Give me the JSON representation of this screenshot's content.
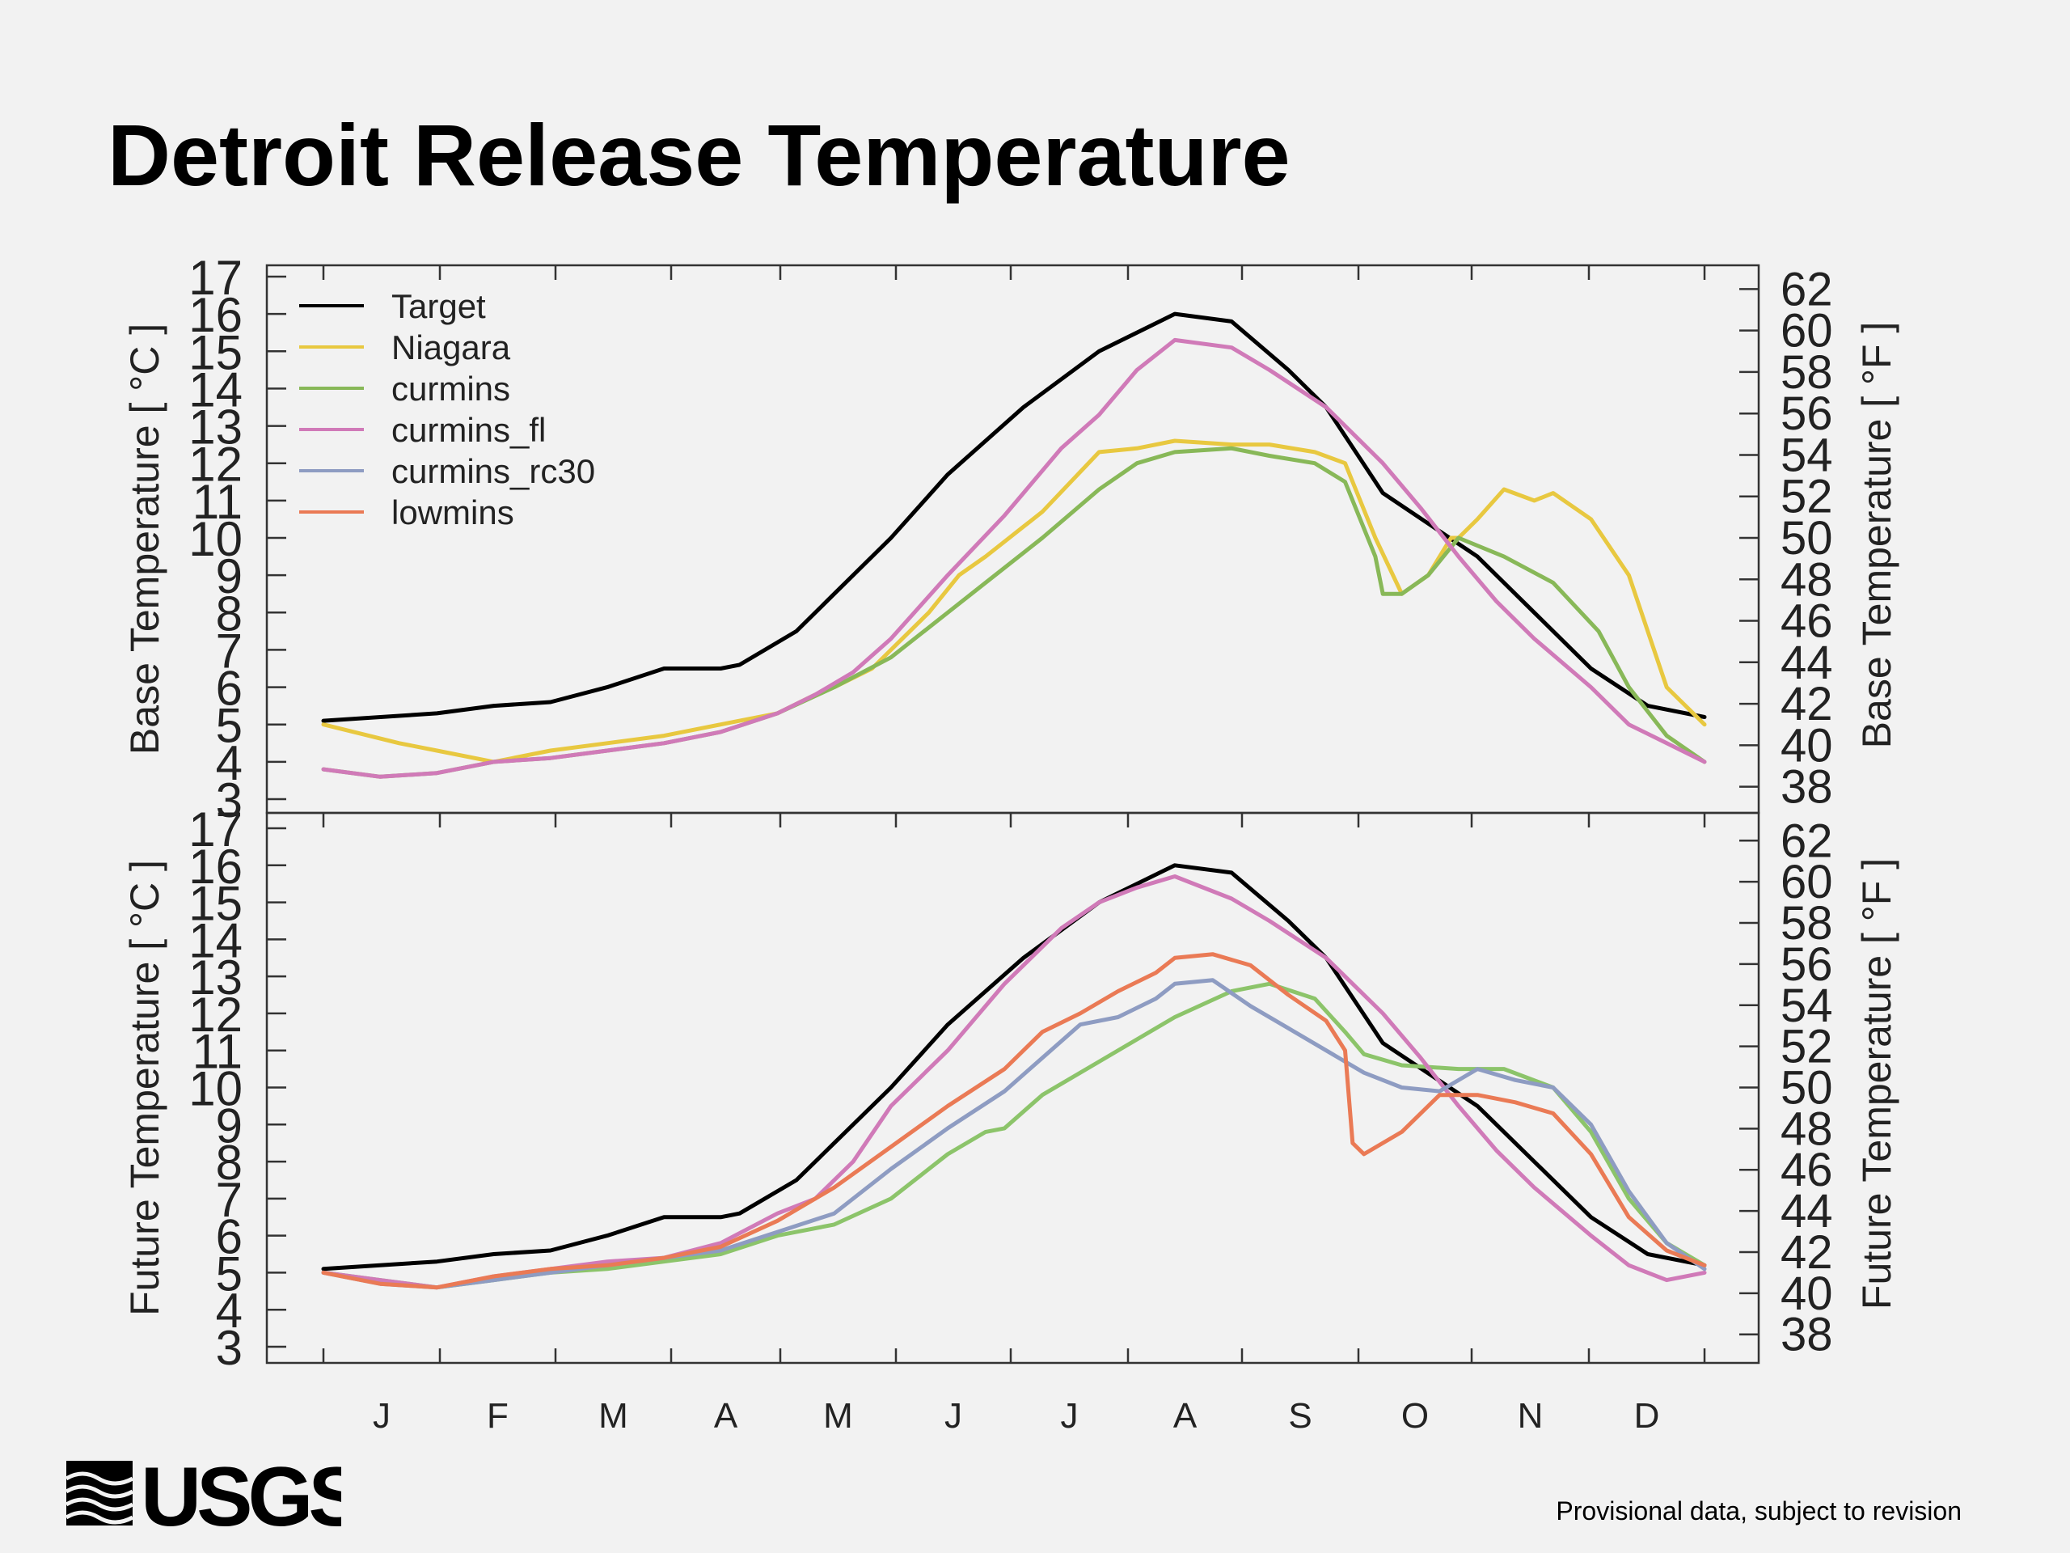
{
  "title": "Detroit Release Temperature",
  "footnote": "Provisional data, subject to revision",
  "logo_text": "USGS",
  "chart_data": [
    {
      "type": "line",
      "panel": "top",
      "ylabel": "Base Temperature [ °C ]",
      "ylabel_right": "Base Temperature [ °F ]",
      "ylim": [
        3,
        17
      ],
      "yticks": [
        3,
        4,
        5,
        6,
        7,
        8,
        9,
        10,
        11,
        12,
        13,
        14,
        15,
        16,
        17
      ],
      "yticks_right": [
        38,
        40,
        42,
        44,
        46,
        48,
        50,
        52,
        54,
        56,
        58,
        60,
        62
      ],
      "x_categories": [
        "J",
        "F",
        "M",
        "A",
        "M",
        "J",
        "J",
        "A",
        "S",
        "O",
        "N",
        "D"
      ],
      "xlim": [
        0,
        365
      ],
      "grid": false,
      "legend_position": "top-left",
      "legend": [
        "Target",
        "Niagara",
        "curmins",
        "curmins_fl",
        "curmins_rc30",
        "lowmins"
      ],
      "series": [
        {
          "name": "Target",
          "color": "#000000",
          "x": [
            0,
            30,
            45,
            60,
            75,
            90,
            105,
            110,
            125,
            135,
            150,
            165,
            185,
            205,
            225,
            240,
            255,
            265,
            280,
            305,
            320,
            335,
            350,
            365
          ],
          "y": [
            5.1,
            5.3,
            5.5,
            5.6,
            6.0,
            6.5,
            6.5,
            6.6,
            7.5,
            8.5,
            10.0,
            11.7,
            13.5,
            15.0,
            16.0,
            15.8,
            14.5,
            13.5,
            11.2,
            9.5,
            8.0,
            6.5,
            5.5,
            5.2
          ]
        },
        {
          "name": "Niagara",
          "color": "#e8c840",
          "x": [
            0,
            20,
            30,
            45,
            60,
            75,
            90,
            105,
            120,
            130,
            135,
            145,
            150,
            160,
            168,
            175,
            190,
            205,
            215,
            225,
            240,
            250,
            262,
            270,
            278,
            285,
            292,
            298,
            300,
            305,
            312,
            320,
            325,
            335,
            345,
            350,
            355,
            365
          ],
          "y": [
            5.0,
            4.5,
            4.3,
            4.0,
            4.3,
            4.5,
            4.7,
            5.0,
            5.3,
            5.8,
            6.0,
            6.5,
            7.0,
            8.0,
            9.0,
            9.5,
            10.7,
            12.3,
            12.4,
            12.6,
            12.5,
            12.5,
            12.3,
            12.0,
            10.0,
            8.5,
            9.0,
            10.0,
            10.0,
            10.5,
            11.3,
            11.0,
            11.2,
            10.5,
            9.0,
            7.5,
            6.0,
            5.0
          ]
        },
        {
          "name": "curmins",
          "color": "#88b858",
          "x": [
            0,
            15,
            30,
            45,
            60,
            75,
            90,
            105,
            120,
            135,
            150,
            165,
            175,
            190,
            205,
            215,
            225,
            240,
            250,
            262,
            270,
            278,
            280,
            285,
            292,
            300,
            312,
            325,
            337,
            345,
            355,
            365
          ],
          "y": [
            3.8,
            3.6,
            3.7,
            4.0,
            4.1,
            4.3,
            4.5,
            4.8,
            5.3,
            6.0,
            6.8,
            8.0,
            8.8,
            10.0,
            11.3,
            12.0,
            12.3,
            12.4,
            12.2,
            12.0,
            11.5,
            9.5,
            8.5,
            8.5,
            9.0,
            10.0,
            9.5,
            8.8,
            7.5,
            6.0,
            4.7,
            4.0
          ]
        },
        {
          "name": "curmins_fl",
          "color": "#d07ab8",
          "x": [
            0,
            15,
            30,
            45,
            60,
            75,
            90,
            105,
            120,
            130,
            140,
            150,
            165,
            180,
            195,
            205,
            215,
            225,
            240,
            250,
            265,
            280,
            290,
            300,
            310,
            320,
            335,
            345,
            355,
            365
          ],
          "y": [
            3.8,
            3.6,
            3.7,
            4.0,
            4.1,
            4.3,
            4.5,
            4.8,
            5.3,
            5.8,
            6.4,
            7.3,
            9.0,
            10.6,
            12.4,
            13.3,
            14.5,
            15.3,
            15.1,
            14.5,
            13.5,
            12.0,
            10.8,
            9.5,
            8.3,
            7.3,
            6.0,
            5.0,
            4.5,
            4.0
          ]
        }
      ]
    },
    {
      "type": "line",
      "panel": "bottom",
      "ylabel": "Future Temperature [ °C ]",
      "ylabel_right": "Future Temperature [ °F ]",
      "ylim": [
        3,
        17
      ],
      "yticks": [
        3,
        4,
        5,
        6,
        7,
        8,
        9,
        10,
        11,
        12,
        13,
        14,
        15,
        16,
        17
      ],
      "yticks_right": [
        38,
        40,
        42,
        44,
        46,
        48,
        50,
        52,
        54,
        56,
        58,
        60,
        62
      ],
      "x_categories": [
        "J",
        "F",
        "M",
        "A",
        "M",
        "J",
        "J",
        "A",
        "S",
        "O",
        "N",
        "D"
      ],
      "xlim": [
        0,
        365
      ],
      "grid": false,
      "series": [
        {
          "name": "Target",
          "color": "#000000",
          "x": [
            0,
            30,
            45,
            60,
            75,
            90,
            105,
            110,
            125,
            135,
            150,
            165,
            185,
            205,
            225,
            240,
            255,
            265,
            280,
            305,
            320,
            335,
            350,
            365
          ],
          "y": [
            5.1,
            5.3,
            5.5,
            5.6,
            6.0,
            6.5,
            6.5,
            6.6,
            7.5,
            8.5,
            10.0,
            11.7,
            13.5,
            15.0,
            16.0,
            15.8,
            14.5,
            13.5,
            11.2,
            9.5,
            8.0,
            6.5,
            5.5,
            5.2
          ]
        },
        {
          "name": "curmins",
          "color": "#8cc46a",
          "x": [
            0,
            15,
            30,
            45,
            60,
            75,
            90,
            105,
            120,
            135,
            150,
            165,
            175,
            180,
            190,
            205,
            215,
            225,
            240,
            250,
            262,
            270,
            275,
            285,
            300,
            312,
            325,
            335,
            345,
            355,
            365
          ],
          "y": [
            5.0,
            4.8,
            4.6,
            4.8,
            5.0,
            5.1,
            5.3,
            5.5,
            6.0,
            6.3,
            7.0,
            8.2,
            8.8,
            8.9,
            9.8,
            10.7,
            11.3,
            11.9,
            12.6,
            12.8,
            12.4,
            11.5,
            10.9,
            10.6,
            10.5,
            10.5,
            10.0,
            8.8,
            7.0,
            5.8,
            5.2
          ]
        },
        {
          "name": "curmins_fl",
          "color": "#d07ab8",
          "x": [
            0,
            15,
            30,
            45,
            60,
            75,
            90,
            105,
            120,
            130,
            140,
            150,
            165,
            180,
            195,
            205,
            215,
            225,
            240,
            250,
            265,
            280,
            290,
            300,
            310,
            320,
            335,
            345,
            355,
            365
          ],
          "y": [
            5.0,
            4.8,
            4.6,
            4.9,
            5.1,
            5.3,
            5.4,
            5.8,
            6.6,
            7.0,
            8.0,
            9.5,
            11.0,
            12.8,
            14.3,
            15.0,
            15.4,
            15.7,
            15.1,
            14.5,
            13.5,
            12.0,
            10.8,
            9.5,
            8.3,
            7.3,
            6.0,
            5.2,
            4.8,
            5.0
          ]
        },
        {
          "name": "curmins_rc30",
          "color": "#8e9cc2",
          "x": [
            0,
            15,
            30,
            45,
            60,
            75,
            90,
            105,
            120,
            135,
            150,
            165,
            180,
            190,
            200,
            210,
            220,
            225,
            235,
            245,
            255,
            265,
            275,
            285,
            295,
            305,
            315,
            325,
            335,
            345,
            355,
            365
          ],
          "y": [
            5.0,
            4.7,
            4.6,
            4.8,
            5.0,
            5.2,
            5.4,
            5.6,
            6.1,
            6.6,
            7.8,
            8.9,
            9.9,
            10.8,
            11.7,
            11.9,
            12.4,
            12.8,
            12.9,
            12.2,
            11.6,
            11.0,
            10.4,
            10.0,
            9.9,
            10.5,
            10.2,
            10.0,
            9.0,
            7.2,
            5.8,
            5.1
          ]
        },
        {
          "name": "lowmins",
          "color": "#ea7a55",
          "x": [
            0,
            15,
            30,
            45,
            60,
            75,
            90,
            105,
            120,
            135,
            150,
            165,
            180,
            190,
            200,
            210,
            220,
            225,
            235,
            245,
            255,
            265,
            270,
            272,
            275,
            285,
            295,
            305,
            315,
            325,
            335,
            345,
            355,
            365
          ],
          "y": [
            5.0,
            4.7,
            4.6,
            4.9,
            5.1,
            5.2,
            5.4,
            5.7,
            6.4,
            7.3,
            8.4,
            9.5,
            10.5,
            11.5,
            12.0,
            12.6,
            13.1,
            13.5,
            13.6,
            13.3,
            12.5,
            11.8,
            11.0,
            8.5,
            8.2,
            8.8,
            9.8,
            9.8,
            9.6,
            9.3,
            8.2,
            6.5,
            5.6,
            5.2
          ]
        }
      ]
    }
  ]
}
